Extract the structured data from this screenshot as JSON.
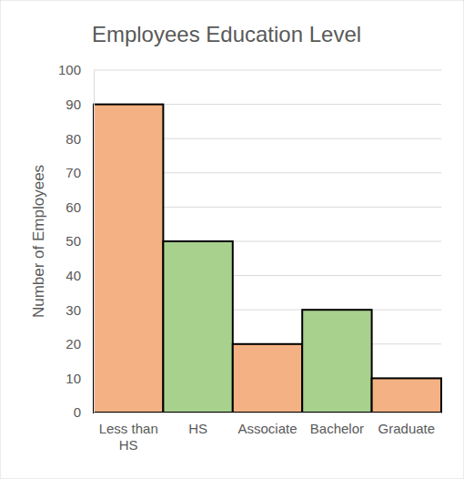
{
  "chart_data": {
    "type": "bar",
    "title": "Employees Education Level",
    "y_label": "Number of Employees",
    "categories": [
      "Less than HS",
      "HS",
      "Associate",
      "Bachelor",
      "Graduate"
    ],
    "values": [
      90,
      50,
      20,
      30,
      10
    ],
    "colors": [
      "#f4b183",
      "#a9d18e",
      "#f4b183",
      "#a9d18e",
      "#f4b183"
    ],
    "ylim": [
      0,
      100
    ],
    "yticks": [
      0,
      10,
      20,
      30,
      40,
      50,
      60,
      70,
      80,
      90,
      100
    ],
    "grid": true
  }
}
